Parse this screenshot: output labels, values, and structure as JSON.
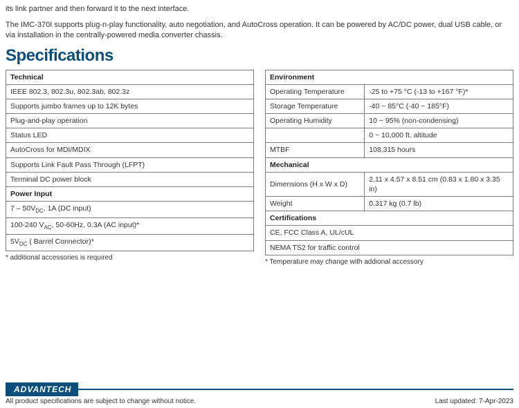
{
  "intro": {
    "line1": "its link partner and then forward it to the next interface.",
    "line2": "The IMC-370I supports plug-n-play functionality, auto negotiation, and AutoCross operation. It can be powered by AC/DC power, dual USB cable, or via installation in the centrally-powered media converter chassis."
  },
  "heading": "Specifications",
  "left": {
    "technical_header": "Technical",
    "technical_rows": [
      "IEEE 802.3, 802.3u, 802.3ab, 802.3z",
      "Supports jumbo frames up to 12K bytes",
      "Plug-and-play operation",
      "Status LED",
      "AutoCross for MDI/MDIX",
      "Supports Link Fault Pass Through (LFPT)",
      "Terminal DC power block"
    ],
    "power_header": "Power Input",
    "power_rows_html": [
      "7 – 50V<sub>DC</sub>, 1A (DC input)",
      "100-240 V<sub>AC</sub>, 50-60Hz, 0.3A (AC input)*",
      "5V<sub>DC</sub> ( Barrel Connector)*"
    ],
    "footnote": "* additional accessories is required"
  },
  "right": {
    "env_header": "Environment",
    "env_rows": [
      {
        "label": "Operating Temperature",
        "value": "-25 to +75 °C (-13 to +167 °F)*"
      },
      {
        "label": "Storage Temperature",
        "value": "-40 ~ 85°C (-40 ~ 185°F)"
      },
      {
        "label": "Operating Humidity",
        "value": "10 ~ 95% (non-condensing)"
      },
      {
        "label": "",
        "value": "0 ~ 10,000 ft. altitude"
      },
      {
        "label": "MTBF",
        "value": "108,315 hours"
      }
    ],
    "mech_header": "Mechanical",
    "mech_rows": [
      {
        "label": "Dimensions (H x W x D)",
        "value": "2.11 x 4.57 x 8.51 cm (0.83 x 1.80 x 3.35 in)"
      },
      {
        "label": "Weight",
        "value": "0.317 kg (0.7 lb)"
      }
    ],
    "cert_header": "Certifications",
    "cert_rows": [
      "CE, FCC Class A, UL/cUL",
      "NEMA TS2 for traffic control"
    ],
    "footnote": "* Temperature may change with addional accessory"
  },
  "footer": {
    "logo": "ADVANTECH",
    "left": "All product specifications are subject to change without notice.",
    "right": "Last updated: 7-Apr-2023"
  },
  "colors": {
    "brand": "#0b4f7a",
    "border": "#7a7a7a",
    "text": "#333333"
  }
}
